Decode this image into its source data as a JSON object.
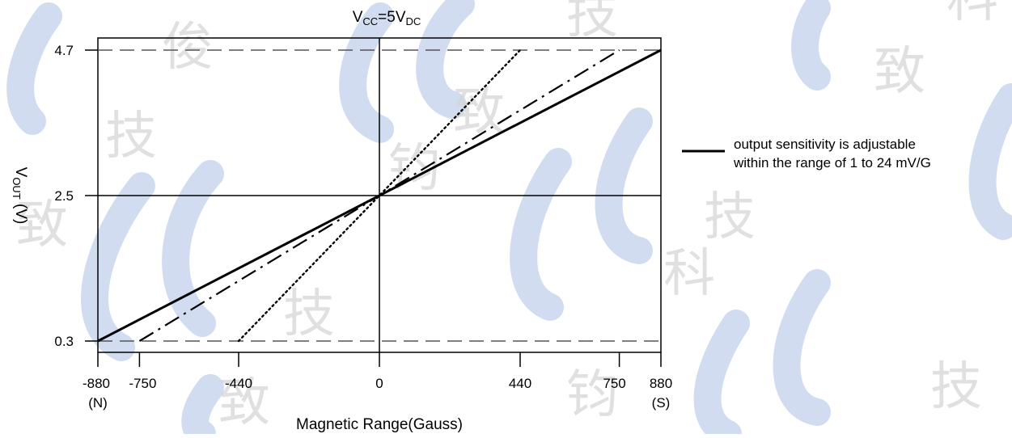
{
  "chart_data": {
    "type": "line",
    "title_main": "V",
    "title_sub1": "CC",
    "title_mid": "=5V",
    "title_sub2": "DC",
    "ylabel_main": "V",
    "ylabel_sub": "OUT",
    "ylabel_unit": " (V)",
    "xlabel": "Magnetic Range(Gauss)",
    "xlim": [
      -880,
      880
    ],
    "ylim": [
      0,
      5
    ],
    "x_ticks": [
      {
        "value": -880,
        "label": "-880",
        "sub": "(N)"
      },
      {
        "value": -750,
        "label": "-750",
        "sub": ""
      },
      {
        "value": -440,
        "label": "-440",
        "sub": ""
      },
      {
        "value": 0,
        "label": "0",
        "sub": ""
      },
      {
        "value": 440,
        "label": "440",
        "sub": ""
      },
      {
        "value": 750,
        "label": "750",
        "sub": ""
      },
      {
        "value": 880,
        "label": "880",
        "sub": "(S)"
      }
    ],
    "y_ticks": [
      {
        "value": 0.3,
        "label": "0.3"
      },
      {
        "value": 2.5,
        "label": "2.5"
      },
      {
        "value": 4.7,
        "label": "4.7"
      }
    ],
    "reference_lines": [
      {
        "y": 4.7,
        "style": "dashed"
      },
      {
        "y": 0.3,
        "style": "dashed"
      }
    ],
    "series": [
      {
        "style": "solid",
        "x": [
          -880,
          880
        ],
        "y": [
          0.3,
          4.7
        ]
      },
      {
        "style": "dashdot",
        "x": [
          -750,
          750
        ],
        "y": [
          0.3,
          4.7
        ]
      },
      {
        "style": "dotted",
        "x": [
          -440,
          440
        ],
        "y": [
          0.3,
          4.7
        ]
      }
    ],
    "legend": {
      "line1": "output sensitivity is adjustable",
      "line2": "within the range of 1 to 24 mV/G"
    },
    "grid": false,
    "colors": {
      "line": "#000000",
      "watermark": "#c9d6ef"
    }
  }
}
